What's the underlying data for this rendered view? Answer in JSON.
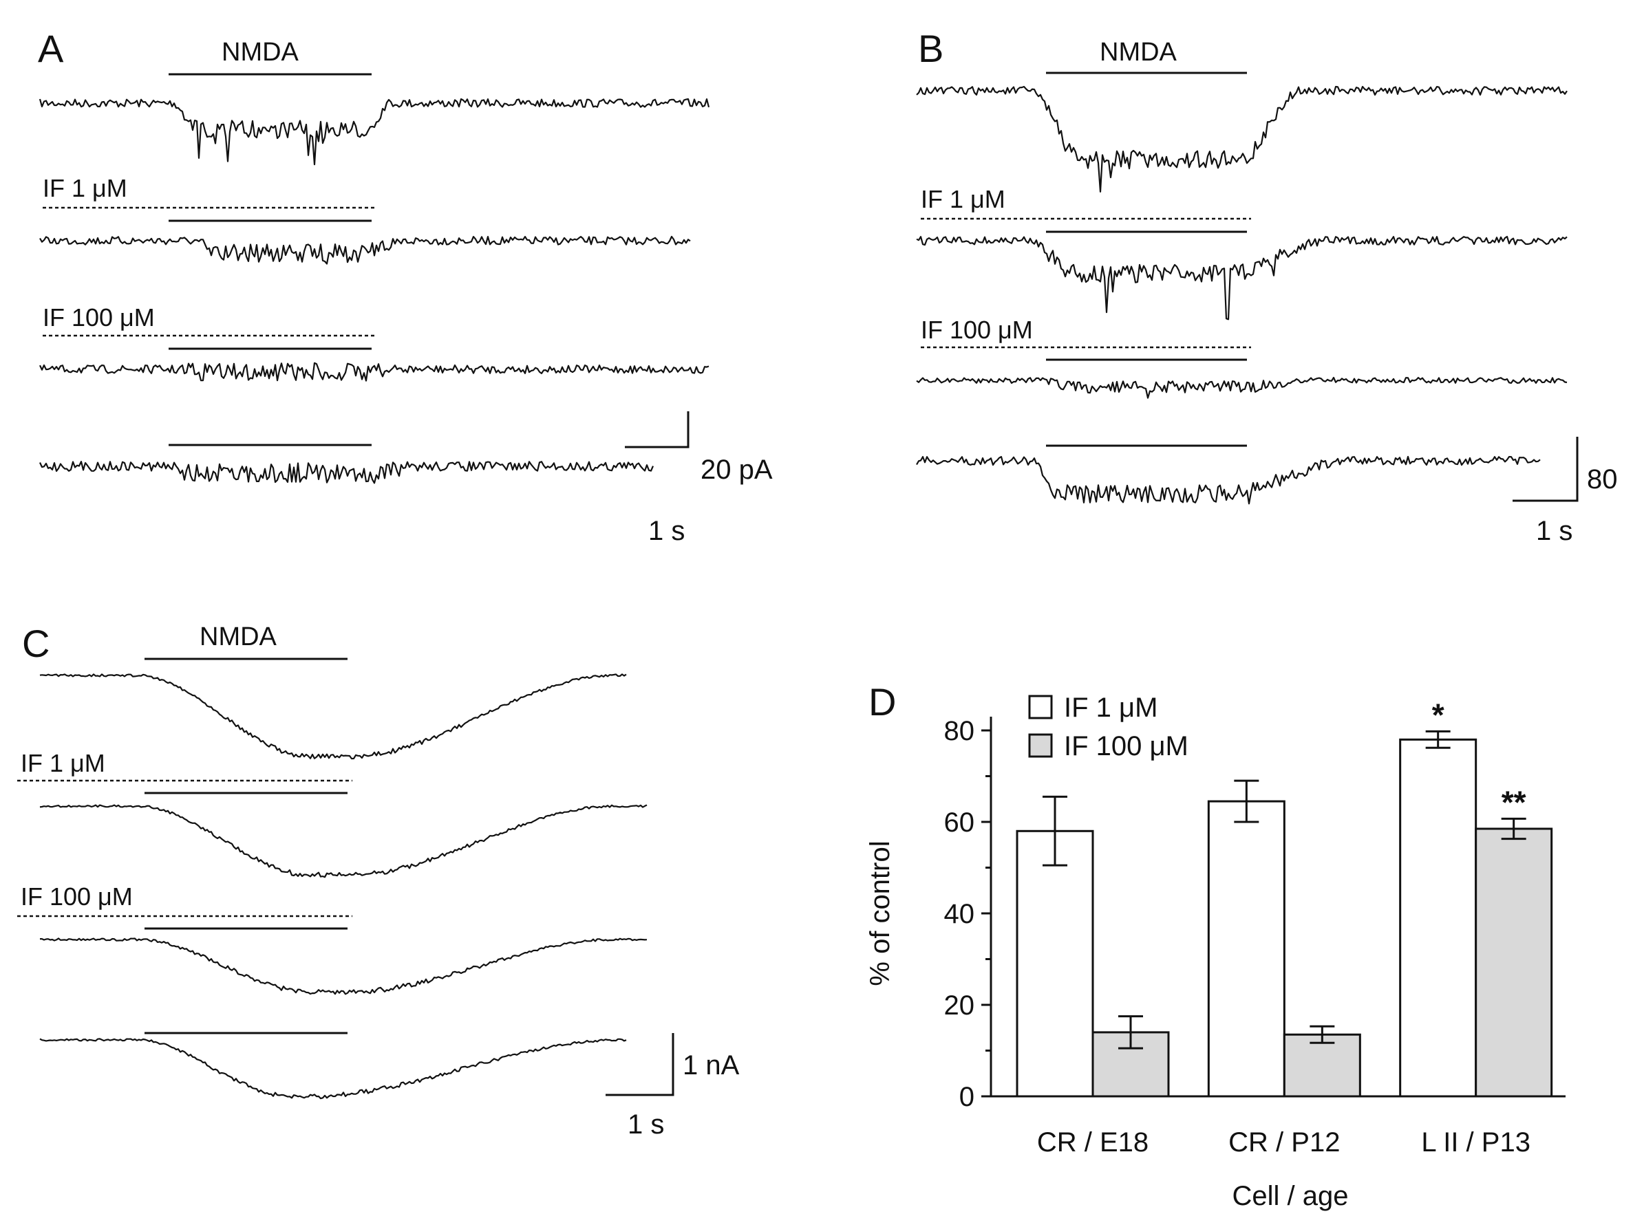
{
  "panel_letters": [
    "A",
    "B",
    "C",
    "D"
  ],
  "application_label": "NMDA",
  "drug_labels": [
    "IF 1 μM",
    "IF 100 μM"
  ],
  "scalebars": {
    "A": {
      "amplitude": "20 pA",
      "time": "1 s"
    },
    "B": {
      "amplitude": "80",
      "time": "1 s"
    },
    "C": {
      "amplitude": "1 nA",
      "time": "1 s"
    }
  },
  "colors": {
    "trace": "#111111",
    "bar_1uM": "#ffffff",
    "bar_100uM": "#d9d9d9"
  },
  "chart_data": {
    "type": "bar",
    "categories": [
      "CR / E18",
      "CR / P12",
      "L II / P13"
    ],
    "series": [
      {
        "name": "IF 1 μM",
        "values": [
          58,
          64.5,
          78
        ],
        "errors": [
          7.5,
          4.5,
          1.8
        ],
        "color": "#ffffff"
      },
      {
        "name": "IF 100 μM",
        "values": [
          14,
          13.5,
          58.5
        ],
        "errors": [
          3.5,
          1.8,
          2.2
        ],
        "color": "#d9d9d9"
      }
    ],
    "significance": [
      {
        "category": "L II / P13",
        "series": "IF 1 μM",
        "mark": "*"
      },
      {
        "category": "L II / P13",
        "series": "IF 100 μM",
        "mark": "**"
      }
    ],
    "title": "",
    "xlabel": "Cell / age",
    "ylabel": "% of control",
    "ylim": [
      0,
      80
    ],
    "yticks": [
      "0",
      "20",
      "40",
      "60",
      "80"
    ],
    "legend_position": "top-left",
    "grid": false
  }
}
